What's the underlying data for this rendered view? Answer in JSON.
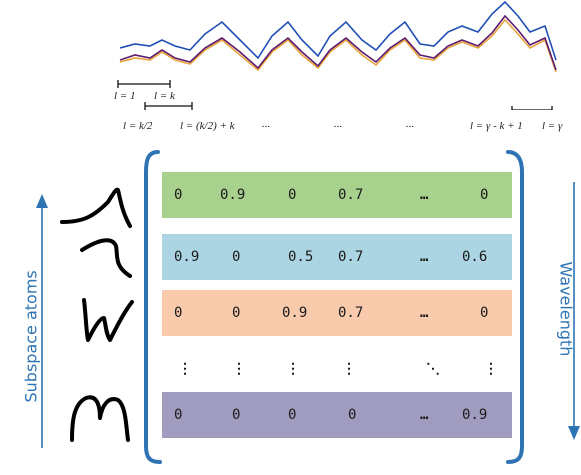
{
  "signal_labels": {
    "top_left_a": "l = 1",
    "top_left_b": "l = k",
    "bottom_a": "l = k/2",
    "bottom_b": "l = (k/2) + k",
    "dots_1": "...",
    "dots_2": "...",
    "dots_3": "...",
    "right_a": "l = γ  - k + 1",
    "right_b": "l = γ"
  },
  "left_axis_label": "Subspace atoms",
  "right_axis_label": "Wavelength",
  "colors": {
    "row_green": "#a9d18e",
    "row_blue": "#acd5e3",
    "row_orange": "#f9caac",
    "row_purple": "#a09cc0",
    "bracket": "#2e74b5",
    "signal_blue": "#1f4fb5",
    "signal_purple": "#5b1a6e",
    "signal_orange": "#e8a33a"
  },
  "matrix_rows": [
    {
      "c1": "0",
      "c2": "0.9",
      "c3": "0",
      "c4": "0.7",
      "c5": "…",
      "c6": "0"
    },
    {
      "c1": "0.9",
      "c2": "0",
      "c3": "0.5",
      "c4": "0.7",
      "c5": "…",
      "c6": "0.6"
    },
    {
      "c1": "0",
      "c2": "0",
      "c3": "0.9",
      "c4": "0.7",
      "c5": "…",
      "c6": "0"
    },
    {
      "c1": "⋮",
      "c2": "⋮",
      "c3": "⋮",
      "c4": "⋮",
      "c5": "⋱",
      "c6": "⋮"
    },
    {
      "c1": "0",
      "c2": "0",
      "c3": "0",
      "c4": "0",
      "c5": "…",
      "c6": "0.9"
    }
  ]
}
